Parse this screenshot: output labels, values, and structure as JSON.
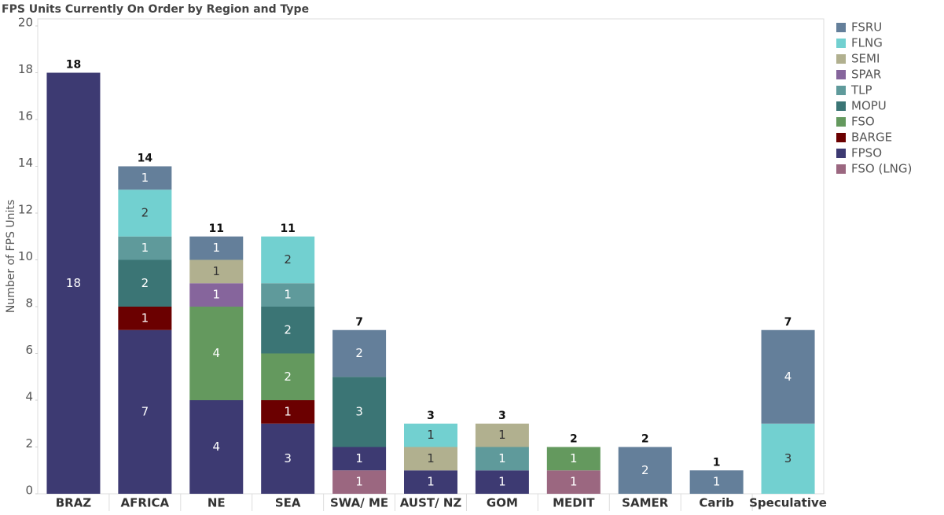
{
  "chart_data": {
    "type": "stacked-bar",
    "title": "FPS Units Currently On Order by Region and Type",
    "y_label": "Number of FPS Units",
    "categories": [
      "BRAZ",
      "AFRICA",
      "NE",
      "SEA",
      "SWA/ ME",
      "AUST/ NZ",
      "GOM",
      "MEDIT",
      "SAMER",
      "Carib",
      "Speculative"
    ],
    "totals": [
      18,
      14,
      11,
      11,
      7,
      3,
      3,
      2,
      2,
      1,
      7
    ],
    "series": [
      {
        "name": "FSRU",
        "color": "#647f9a",
        "values": [
          null,
          1,
          1,
          null,
          2,
          null,
          null,
          null,
          2,
          1,
          4
        ]
      },
      {
        "name": "FLNG",
        "color": "#72d0d0",
        "values": [
          null,
          2,
          null,
          2,
          null,
          1,
          null,
          null,
          null,
          null,
          3
        ]
      },
      {
        "name": "SEMI",
        "color": "#b1b08f",
        "values": [
          null,
          null,
          1,
          null,
          null,
          1,
          1,
          null,
          null,
          null,
          null
        ]
      },
      {
        "name": "SPAR",
        "color": "#86659c",
        "values": [
          null,
          null,
          1,
          null,
          null,
          null,
          null,
          null,
          null,
          null,
          null
        ]
      },
      {
        "name": "TLP",
        "color": "#5f9a9b",
        "values": [
          null,
          1,
          null,
          1,
          null,
          null,
          1,
          null,
          null,
          null,
          null
        ]
      },
      {
        "name": "MOPU",
        "color": "#3b7575",
        "values": [
          null,
          2,
          null,
          2,
          3,
          null,
          null,
          null,
          null,
          null,
          null
        ]
      },
      {
        "name": "FSO",
        "color": "#64995e",
        "values": [
          null,
          null,
          4,
          2,
          null,
          null,
          null,
          1,
          null,
          null,
          null
        ]
      },
      {
        "name": "BARGE",
        "color": "#6b0000",
        "values": [
          null,
          1,
          null,
          1,
          null,
          null,
          null,
          null,
          null,
          null,
          null
        ]
      },
      {
        "name": "FPSO",
        "color": "#3d3a72",
        "values": [
          18,
          7,
          4,
          3,
          1,
          1,
          1,
          null,
          null,
          null,
          null
        ]
      },
      {
        "name": "FSO (LNG)",
        "color": "#9b6780",
        "values": [
          null,
          null,
          null,
          null,
          1,
          null,
          null,
          1,
          null,
          null,
          null
        ]
      }
    ],
    "ylim": [
      0,
      20
    ],
    "yticks": [
      0,
      2,
      4,
      6,
      8,
      10,
      12,
      14,
      16,
      18,
      20
    ]
  }
}
